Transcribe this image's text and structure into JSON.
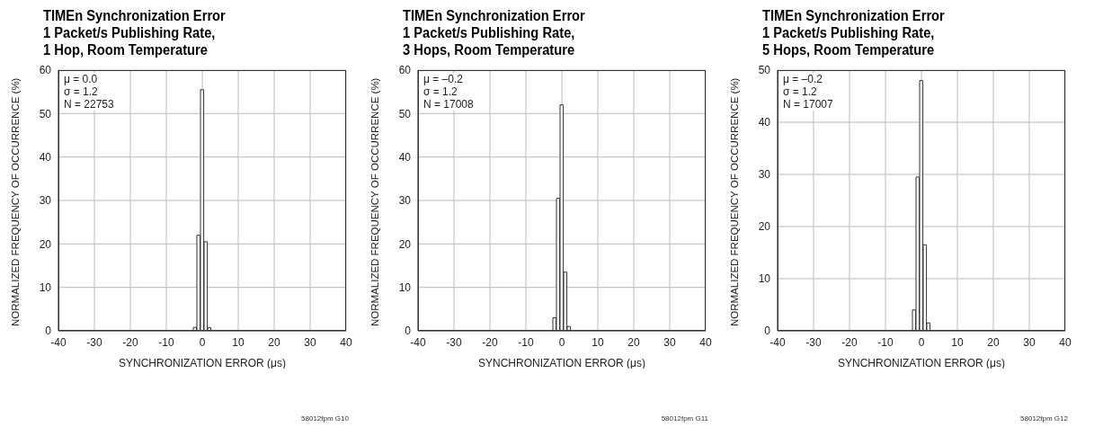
{
  "chart_data": [
    {
      "type": "histogram",
      "title": "TIMEn Synchronization Error\n1 Packet/s Publishing Rate,\n1 Hop, Room Temperature",
      "xlabel": "SYNCHRONIZATION ERROR (μs)",
      "ylabel": "NORMALIZED FREQUENCY OF OCCURRENCE (%)",
      "bins": [
        -2.5,
        -1.5,
        -0.5,
        0.5,
        1.5,
        2.5
      ],
      "values": [
        0.8,
        22,
        55.5,
        20.5,
        0.7
      ],
      "color": "#ffffff",
      "xlim": [
        -40,
        40
      ],
      "xticks": [
        -40,
        -30,
        -20,
        -10,
        0,
        10,
        20,
        30,
        40
      ],
      "ylim": [
        0,
        60
      ],
      "yticks": [
        0,
        10,
        20,
        30,
        40,
        50,
        60
      ],
      "grid": true,
      "annotations": [
        "μ = 0.0\nσ = 1.2\nN = 22753",
        "58012fpm G10"
      ]
    },
    {
      "type": "histogram",
      "title": "TIMEn Synchronization Error\n1 Packet/s Publishing Rate,\n3 Hops, Room Temperature",
      "xlabel": "SYNCHRONIZATION ERROR (μs)",
      "ylabel": "NORMALIZED FREQUENCY OF OCCURRENCE (%)",
      "bins": [
        -2.5,
        -1.5,
        -0.5,
        0.5,
        1.5,
        2.5
      ],
      "values": [
        3,
        30.5,
        52,
        13.5,
        1
      ],
      "color": "#ffffff",
      "xlim": [
        -40,
        40
      ],
      "xticks": [
        -40,
        -30,
        -20,
        -10,
        0,
        10,
        20,
        30,
        40
      ],
      "ylim": [
        0,
        60
      ],
      "yticks": [
        0,
        10,
        20,
        30,
        40,
        50,
        60
      ],
      "grid": true,
      "annotations": [
        "μ = –0.2\nσ = 1.2\nN = 17008",
        "58012fpm G11"
      ]
    },
    {
      "type": "histogram",
      "title": "TIMEn Synchronization Error\n1 Packet/s Publishing Rate,\n5 Hops, Room Temperature",
      "xlabel": "SYNCHRONIZATION ERROR (μs)",
      "ylabel": "NORMALIZED FREQUENCY OF OCCURRENCE (%)",
      "bins": [
        -3.5,
        -2.5,
        -1.5,
        -0.5,
        0.5,
        1.5,
        2.5
      ],
      "values": [
        null,
        4,
        29.5,
        48,
        16.5,
        1.5
      ],
      "color": "#ffffff",
      "xlim": [
        -40,
        40
      ],
      "xticks": [
        -40,
        -30,
        -20,
        -10,
        0,
        10,
        20,
        30,
        40
      ],
      "ylim": [
        0,
        50
      ],
      "yticks": [
        0,
        10,
        20,
        30,
        40,
        50
      ],
      "grid": true,
      "annotations": [
        "μ = –0.2\nσ = 1.2\nN = 17007",
        "58012fpm G12"
      ]
    }
  ]
}
